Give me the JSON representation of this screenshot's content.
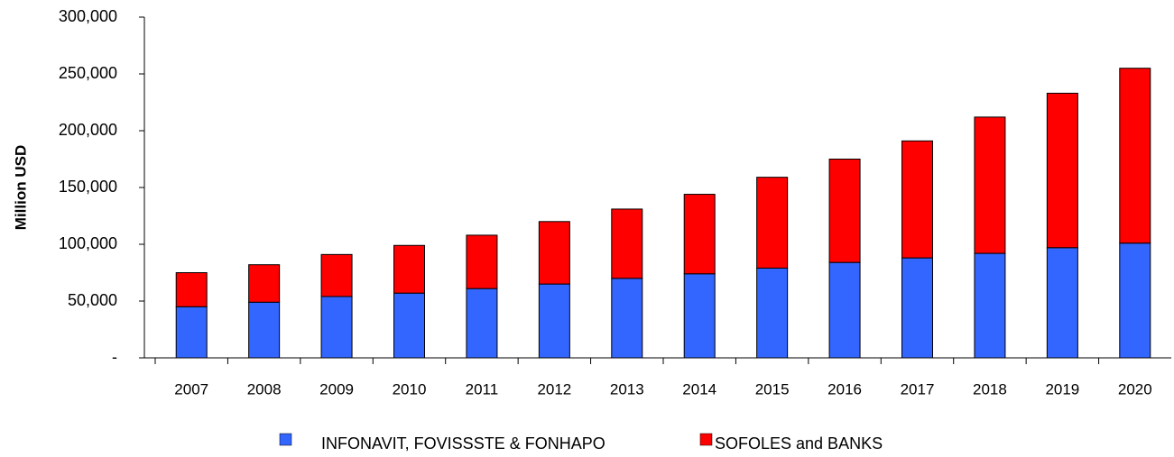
{
  "chart_data": {
    "type": "stacked_bar",
    "y_label": "Million USD",
    "categories": [
      "2007",
      "2008",
      "2009",
      "2010",
      "2011",
      "2012",
      "2013",
      "2014",
      "2015",
      "2016",
      "2017",
      "2018",
      "2019",
      "2020"
    ],
    "series": [
      {
        "name": "INFONAVIT, FOVISSSTE & FONHAPO",
        "color": "#3366ff",
        "values": [
          45000,
          49000,
          54000,
          57000,
          61000,
          65000,
          70000,
          74000,
          79000,
          84000,
          88000,
          92000,
          97000,
          101000
        ]
      },
      {
        "name": "SOFOLES and BANKS",
        "color": "#ff0000",
        "values": [
          30000,
          33000,
          37000,
          42000,
          47000,
          55000,
          61000,
          70000,
          80000,
          91000,
          103000,
          120000,
          136000,
          154000
        ]
      }
    ],
    "ylim": [
      0,
      300000
    ],
    "yticks": [
      {
        "value": 0,
        "label": "-"
      },
      {
        "value": 50000,
        "label": "50,000"
      },
      {
        "value": 100000,
        "label": "100,000"
      },
      {
        "value": 150000,
        "label": "150,000"
      },
      {
        "value": 200000,
        "label": "200,000"
      },
      {
        "value": 250000,
        "label": "250,000"
      },
      {
        "value": 300000,
        "label": "300,000"
      }
    ],
    "legend": "bottom"
  }
}
